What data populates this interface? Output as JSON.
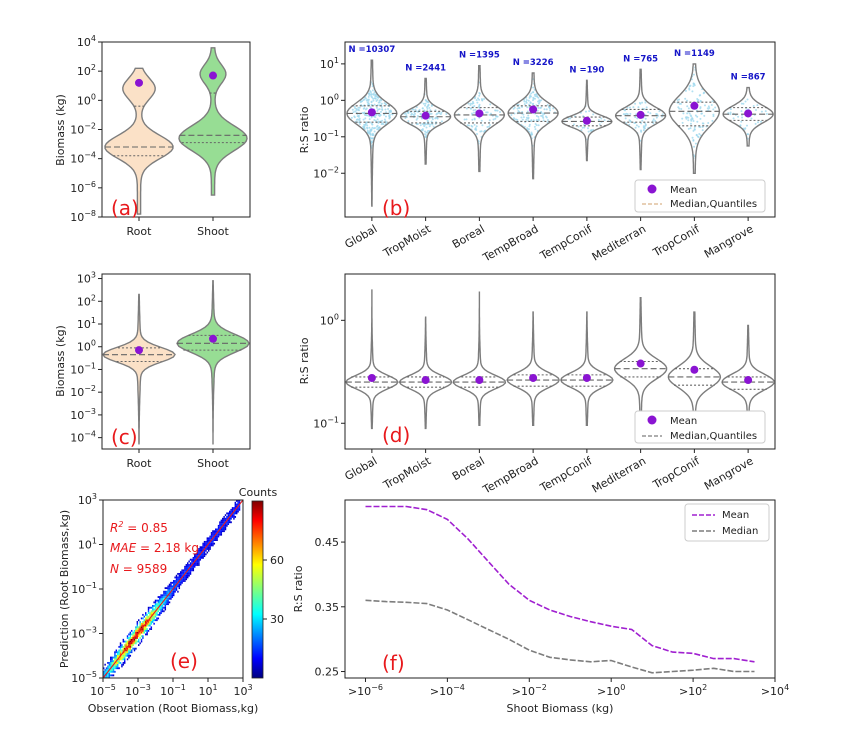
{
  "colors": {
    "root": "#fbe1c7",
    "shoot": "#97dd94",
    "violin_edge": "#7d7d7d",
    "mean": "#8a14d2",
    "points": "#9fd8ee",
    "n_label": "#1515c8",
    "panel_label": "#e8191c",
    "median_line_f": "#7d7d7d",
    "mean_line_f": "#a020d0"
  },
  "panels": {
    "a": {
      "label": "(a)",
      "ylabel": "Biomass (kg)",
      "scale": "log",
      "ylim_exp": [
        -8,
        4
      ],
      "ytick_labels": [
        {
          "base": "10",
          "exp": "−8"
        },
        {
          "base": "10",
          "exp": "−6"
        },
        {
          "base": "10",
          "exp": "−4"
        },
        {
          "base": "10",
          "exp": "−2"
        },
        {
          "base": "10",
          "exp": "0"
        },
        {
          "base": "10",
          "exp": "2"
        },
        {
          "base": "10",
          "exp": "4"
        }
      ],
      "categories": [
        "Root",
        "Shoot"
      ],
      "violins": [
        {
          "category": "Root",
          "color_key": "root",
          "min_exp": -7.8,
          "max_exp": 2.2,
          "median_exp": -3.2,
          "q1_exp": -3.8,
          "q3_exp": -0.4,
          "mean_exp": 1.2
        },
        {
          "category": "Shoot",
          "color_key": "shoot",
          "min_exp": -6.5,
          "max_exp": 3.6,
          "median_exp": -2.4,
          "q1_exp": -2.9,
          "q3_exp": 0.5,
          "mean_exp": 1.7
        }
      ]
    },
    "b": {
      "label": "(b)",
      "ylabel": "R:S ratio",
      "scale": "log",
      "ylim_exp": [
        -3.2,
        1.6
      ],
      "ytick_labels": [
        {
          "base": "10",
          "exp": "−2"
        },
        {
          "base": "10",
          "exp": "−1"
        },
        {
          "base": "10",
          "exp": "0"
        },
        {
          "base": "10",
          "exp": "1"
        }
      ],
      "categories": [
        "Global",
        "TropMoist",
        "Boreal",
        "TempBroad",
        "TempConif",
        "Mediterran",
        "TropConif",
        "Mangrove"
      ],
      "n_labels": [
        "N =10307",
        "N =2441",
        "N =1395",
        "N =3226",
        "N =190",
        "N =765",
        "N =1149",
        "N =867"
      ],
      "violins": [
        {
          "min_exp": -2.9,
          "max_exp": 1.1,
          "median_exp": -0.36,
          "q1_exp": -0.6,
          "q3_exp": -0.15,
          "mean_exp": -0.33
        },
        {
          "min_exp": -1.75,
          "max_exp": 0.6,
          "median_exp": -0.45,
          "q1_exp": -0.62,
          "q3_exp": -0.3,
          "mean_exp": -0.42
        },
        {
          "min_exp": -1.95,
          "max_exp": 0.95,
          "median_exp": -0.4,
          "q1_exp": -0.62,
          "q3_exp": -0.2,
          "mean_exp": -0.36
        },
        {
          "min_exp": -2.15,
          "max_exp": 0.75,
          "median_exp": -0.35,
          "q1_exp": -0.58,
          "q3_exp": -0.15,
          "mean_exp": -0.25
        },
        {
          "min_exp": -1.65,
          "max_exp": 0.55,
          "median_exp": -0.58,
          "q1_exp": -0.7,
          "q3_exp": -0.46,
          "mean_exp": -0.56
        },
        {
          "min_exp": -1.9,
          "max_exp": 0.85,
          "median_exp": -0.42,
          "q1_exp": -0.6,
          "q3_exp": -0.25,
          "mean_exp": -0.4
        },
        {
          "min_exp": -2.0,
          "max_exp": 1.0,
          "median_exp": -0.3,
          "q1_exp": -0.7,
          "q3_exp": -0.05,
          "mean_exp": -0.15
        },
        {
          "min_exp": -1.25,
          "max_exp": 0.35,
          "median_exp": -0.38,
          "q1_exp": -0.55,
          "q3_exp": -0.2,
          "mean_exp": -0.36
        }
      ],
      "legend": {
        "mean": "Mean",
        "median": "Median,Quantiles"
      }
    },
    "c": {
      "label": "(c)",
      "ylabel": "Biomass (kg)",
      "scale": "log",
      "ylim_exp": [
        -4.5,
        3.2
      ],
      "ytick_labels": [
        {
          "base": "10",
          "exp": "−4"
        },
        {
          "base": "10",
          "exp": "−3"
        },
        {
          "base": "10",
          "exp": "−2"
        },
        {
          "base": "10",
          "exp": "−1"
        },
        {
          "base": "10",
          "exp": "0"
        },
        {
          "base": "10",
          "exp": "1"
        },
        {
          "base": "10",
          "exp": "2"
        },
        {
          "base": "10",
          "exp": "3"
        }
      ],
      "categories": [
        "Root",
        "Shoot"
      ],
      "violins": [
        {
          "category": "Root",
          "color_key": "root",
          "min_exp": -4.3,
          "max_exp": 2.3,
          "median_exp": -0.35,
          "q1_exp": -0.65,
          "q3_exp": -0.05,
          "mean_exp": -0.15
        },
        {
          "category": "Shoot",
          "color_key": "shoot",
          "min_exp": -4.3,
          "max_exp": 2.9,
          "median_exp": 0.15,
          "q1_exp": -0.15,
          "q3_exp": 0.5,
          "mean_exp": 0.35
        }
      ]
    },
    "d": {
      "label": "(d)",
      "ylabel": "R:S ratio",
      "scale": "log",
      "ylim_exp": [
        -1.25,
        0.45
      ],
      "ytick_labels": [
        {
          "base": "10",
          "exp": "−1"
        },
        {
          "base": "10",
          "exp": "0"
        }
      ],
      "categories": [
        "Global",
        "TropMoist",
        "Boreal",
        "TempBroad",
        "TempConif",
        "Mediterran",
        "TropConif",
        "Mangrove"
      ],
      "violins": [
        {
          "min_exp": -1.05,
          "max_exp": 0.3,
          "median_exp": -0.6,
          "q1_exp": -0.65,
          "q3_exp": -0.55,
          "mean_exp": -0.56
        },
        {
          "min_exp": -1.05,
          "max_exp": 0.03,
          "median_exp": -0.6,
          "q1_exp": -0.65,
          "q3_exp": -0.55,
          "mean_exp": -0.58
        },
        {
          "min_exp": -1.02,
          "max_exp": 0.28,
          "median_exp": -0.6,
          "q1_exp": -0.65,
          "q3_exp": -0.55,
          "mean_exp": -0.58
        },
        {
          "min_exp": -1.02,
          "max_exp": 0.08,
          "median_exp": -0.58,
          "q1_exp": -0.64,
          "q3_exp": -0.53,
          "mean_exp": -0.56
        },
        {
          "min_exp": -1.02,
          "max_exp": 0.08,
          "median_exp": -0.58,
          "q1_exp": -0.64,
          "q3_exp": -0.53,
          "mean_exp": -0.56
        },
        {
          "min_exp": -0.95,
          "max_exp": 0.22,
          "median_exp": -0.47,
          "q1_exp": -0.55,
          "q3_exp": -0.4,
          "mean_exp": -0.42
        },
        {
          "min_exp": -0.95,
          "max_exp": 0.08,
          "median_exp": -0.55,
          "q1_exp": -0.63,
          "q3_exp": -0.47,
          "mean_exp": -0.48
        },
        {
          "min_exp": -0.95,
          "max_exp": -0.05,
          "median_exp": -0.6,
          "q1_exp": -0.67,
          "q3_exp": -0.55,
          "mean_exp": -0.58
        }
      ],
      "legend": {
        "mean": "Mean",
        "median": "Median,Quantiles"
      }
    },
    "e": {
      "label": "(e)",
      "xlabel": "Observation (Root Biomass,kg)",
      "ylabel": "Prediction (Root Biomass,kg)",
      "scale": "log",
      "xlim_exp": [
        -5,
        3
      ],
      "ylim_exp": [
        -5,
        3
      ],
      "xtick_labels": [
        {
          "base": "10",
          "exp": "−5"
        },
        {
          "base": "10",
          "exp": "−3"
        },
        {
          "base": "10",
          "exp": "−1"
        },
        {
          "base": "10",
          "exp": "1"
        },
        {
          "base": "10",
          "exp": "3"
        }
      ],
      "ytick_labels": [
        {
          "base": "10",
          "exp": "−5"
        },
        {
          "base": "10",
          "exp": "−3"
        },
        {
          "base": "10",
          "exp": "−1"
        },
        {
          "base": "10",
          "exp": "1"
        },
        {
          "base": "10",
          "exp": "3"
        }
      ],
      "stats": {
        "r2": {
          "sym": "R",
          "sup": "2",
          "rest": " = 0.85"
        },
        "mae": {
          "sym": "MAE",
          "rest": " = 2.18 kg"
        },
        "n": {
          "sym": "N",
          "rest": " = 9589"
        }
      },
      "colorbar": {
        "title": "Counts",
        "ticks": [
          "30",
          "60"
        ],
        "range": [
          0,
          90
        ]
      }
    },
    "f": {
      "label": "(f)",
      "xlabel": "Shoot Biomass (kg)",
      "ylabel": "R:S ratio",
      "xlim_exp": [
        -6.5,
        4
      ],
      "ylim": [
        0.24,
        0.515
      ],
      "xtick_labels": [
        {
          "pre": ">10",
          "exp": "−6",
          "v": -6
        },
        {
          "pre": ">10",
          "exp": "−4",
          "v": -4
        },
        {
          "pre": ">10",
          "exp": "−2",
          "v": -2
        },
        {
          "pre": ">10",
          "exp": "0",
          "v": 0
        },
        {
          "pre": ">10",
          "exp": "2",
          "v": 2
        },
        {
          "pre": ">10",
          "exp": "4",
          "v": 4
        }
      ],
      "ytick_labels": [
        "0.25",
        "0.35",
        "0.45"
      ],
      "ytick_values": [
        0.25,
        0.35,
        0.45
      ],
      "legend": {
        "mean": "Mean",
        "median": "Median"
      }
    }
  },
  "chart_data": [
    {
      "panel": "a",
      "type": "violin",
      "categories": [
        "Root",
        "Shoot"
      ],
      "ylabel": "Biomass (kg)",
      "yscale": "log",
      "ylim": [
        1e-08,
        10000.0
      ],
      "series": [
        {
          "name": "Root",
          "median": 0.0006,
          "mean": 16
        },
        {
          "name": "Shoot",
          "median": 0.004,
          "mean": 50
        }
      ]
    },
    {
      "panel": "b",
      "type": "violin",
      "ylabel": "R:S ratio",
      "yscale": "log",
      "categories": [
        "Global",
        "TropMoist",
        "Boreal",
        "TempBroad",
        "TempConif",
        "Mediterran",
        "TropConif",
        "Mangrove"
      ],
      "n": [
        10307,
        2441,
        1395,
        3226,
        190,
        765,
        1149,
        867
      ],
      "mean": [
        0.47,
        0.38,
        0.44,
        0.56,
        0.28,
        0.4,
        0.71,
        0.44
      ]
    },
    {
      "panel": "c",
      "type": "violin",
      "categories": [
        "Root",
        "Shoot"
      ],
      "ylabel": "Biomass (kg)",
      "yscale": "log",
      "ylim": [
        0.0001,
        1000.0
      ],
      "series": [
        {
          "name": "Root",
          "median": 0.45,
          "mean": 0.7
        },
        {
          "name": "Shoot",
          "median": 1.4,
          "mean": 2.2
        }
      ]
    },
    {
      "panel": "d",
      "type": "violin",
      "ylabel": "R:S ratio",
      "yscale": "log",
      "categories": [
        "Global",
        "TropMoist",
        "Boreal",
        "TempBroad",
        "TempConif",
        "Mediterran",
        "TropConif",
        "Mangrove"
      ],
      "mean": [
        0.28,
        0.26,
        0.26,
        0.28,
        0.28,
        0.38,
        0.33,
        0.26
      ]
    },
    {
      "panel": "e",
      "type": "heatmap",
      "xlabel": "Observation (Root Biomass,kg)",
      "ylabel": "Prediction (Root Biomass,kg)",
      "xscale": "log",
      "yscale": "log",
      "xlim": [
        1e-05,
        1000.0
      ],
      "ylim": [
        1e-05,
        1000.0
      ],
      "R2": 0.85,
      "MAE_kg": 2.18,
      "N": 9589,
      "colorbar": "Counts"
    },
    {
      "panel": "f",
      "type": "line",
      "xlabel": "Shoot Biomass (kg)",
      "ylabel": "R:S ratio",
      "x_log10": [
        -6,
        -5.5,
        -5,
        -4.5,
        -4,
        -3.5,
        -3,
        -2.5,
        -2,
        -1.5,
        -1,
        -0.5,
        0,
        0.5,
        1,
        1.5,
        2,
        2.5,
        3,
        3.5
      ],
      "series": [
        {
          "name": "Mean",
          "values": [
            0.505,
            0.505,
            0.505,
            0.5,
            0.485,
            0.455,
            0.42,
            0.385,
            0.36,
            0.345,
            0.335,
            0.327,
            0.32,
            0.315,
            0.29,
            0.28,
            0.278,
            0.27,
            0.27,
            0.265
          ]
        },
        {
          "name": "Median",
          "values": [
            0.36,
            0.358,
            0.357,
            0.355,
            0.345,
            0.33,
            0.315,
            0.3,
            0.283,
            0.272,
            0.268,
            0.265,
            0.267,
            0.257,
            0.248,
            0.25,
            0.252,
            0.255,
            0.25,
            0.25
          ]
        }
      ]
    }
  ]
}
